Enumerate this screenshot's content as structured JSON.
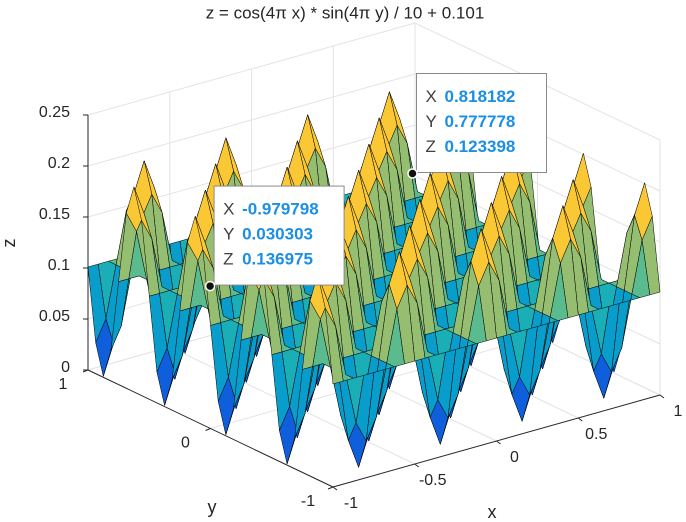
{
  "chart_data": {
    "type": "surface",
    "title": "z = cos(4π x) * sin(4π y) / 10 + 0.101",
    "xlabel": "x",
    "ylabel": "y",
    "zlabel": "z",
    "xlim": [
      -1,
      1
    ],
    "ylim": [
      -1,
      1
    ],
    "zlim": [
      0,
      0.25
    ],
    "xticks": [
      -1,
      -0.5,
      0,
      0.5,
      1
    ],
    "yticks": [
      -1,
      0,
      1
    ],
    "zticks": [
      0,
      0.05,
      0.1,
      0.15,
      0.2,
      0.25
    ],
    "grid": true,
    "clim": [
      0.001,
      0.201
    ],
    "colormap": [
      "#352a87",
      "#0f5cdd",
      "#1481d6",
      "#06a4ca",
      "#2eb7a4",
      "#87bf77",
      "#d1bb59",
      "#fec832",
      "#f9fb0e"
    ],
    "edge_color": "#000000",
    "x": [
      -1,
      -0.9375,
      -0.875,
      -0.8125,
      -0.75,
      -0.6875,
      -0.625,
      -0.5625,
      -0.5,
      -0.4375,
      -0.375,
      -0.3125,
      -0.25,
      -0.1875,
      -0.125,
      -0.0625,
      0,
      0.0625,
      0.125,
      0.1875,
      0.25,
      0.3125,
      0.375,
      0.4375,
      0.5,
      0.5625,
      0.625,
      0.6875,
      0.75,
      0.8125,
      0.875,
      0.9375,
      1
    ],
    "y": [
      -1,
      -0.9375,
      -0.875,
      -0.8125,
      -0.75,
      -0.6875,
      -0.625,
      -0.5625,
      -0.5,
      -0.4375,
      -0.375,
      -0.3125,
      -0.25,
      -0.1875,
      -0.125,
      -0.0625,
      0,
      0.0625,
      0.125,
      0.1875,
      0.25,
      0.3125,
      0.375,
      0.4375,
      0.5,
      0.5625,
      0.625,
      0.6875,
      0.75,
      0.8125,
      0.875,
      0.9375,
      1
    ],
    "z": [
      [
        0.101,
        0.101,
        0.101,
        0.101,
        0.101,
        0.101,
        0.101,
        0.101,
        0.101,
        0.101,
        0.101,
        0.101,
        0.101,
        0.101,
        0.101,
        0.101,
        0.101,
        0.101,
        0.101,
        0.101,
        0.101,
        0.101,
        0.101,
        0.101,
        0.101,
        0.101,
        0.101,
        0.101,
        0.101,
        0.101,
        0.101,
        0.101,
        0.101
      ],
      [
        0.1717,
        0.151,
        0.101,
        0.051,
        0.0303,
        0.051,
        0.101,
        0.151,
        0.1717,
        0.151,
        0.101,
        0.051,
        0.0303,
        0.051,
        0.101,
        0.151,
        0.1717,
        0.151,
        0.101,
        0.051,
        0.0303,
        0.051,
        0.101,
        0.151,
        0.1717,
        0.151,
        0.101,
        0.051,
        0.0303,
        0.051,
        0.101,
        0.151,
        0.1717
      ],
      [
        0.201,
        0.1717,
        0.101,
        0.0303,
        0.001,
        0.0303,
        0.101,
        0.1717,
        0.201,
        0.1717,
        0.101,
        0.0303,
        0.001,
        0.0303,
        0.101,
        0.1717,
        0.201,
        0.1717,
        0.101,
        0.0303,
        0.001,
        0.0303,
        0.101,
        0.1717,
        0.201,
        0.1717,
        0.101,
        0.0303,
        0.001,
        0.0303,
        0.101,
        0.1717,
        0.201
      ],
      [
        0.1717,
        0.151,
        0.101,
        0.051,
        0.0303,
        0.051,
        0.101,
        0.151,
        0.1717,
        0.151,
        0.101,
        0.051,
        0.0303,
        0.051,
        0.101,
        0.151,
        0.1717,
        0.151,
        0.101,
        0.051,
        0.0303,
        0.051,
        0.101,
        0.151,
        0.1717,
        0.151,
        0.101,
        0.051,
        0.0303,
        0.051,
        0.101,
        0.151,
        0.1717
      ],
      [
        0.101,
        0.101,
        0.101,
        0.101,
        0.101,
        0.101,
        0.101,
        0.101,
        0.101,
        0.101,
        0.101,
        0.101,
        0.101,
        0.101,
        0.101,
        0.101,
        0.101,
        0.101,
        0.101,
        0.101,
        0.101,
        0.101,
        0.101,
        0.101,
        0.101,
        0.101,
        0.101,
        0.101,
        0.101,
        0.101,
        0.101,
        0.101,
        0.101
      ],
      [
        0.0303,
        0.051,
        0.101,
        0.151,
        0.1717,
        0.151,
        0.101,
        0.051,
        0.0303,
        0.051,
        0.101,
        0.151,
        0.1717,
        0.151,
        0.101,
        0.051,
        0.0303,
        0.051,
        0.101,
        0.151,
        0.1717,
        0.151,
        0.101,
        0.051,
        0.0303,
        0.051,
        0.101,
        0.151,
        0.1717,
        0.151,
        0.101,
        0.051,
        0.0303
      ],
      [
        0.001,
        0.0303,
        0.101,
        0.1717,
        0.201,
        0.1717,
        0.101,
        0.0303,
        0.001,
        0.0303,
        0.101,
        0.1717,
        0.201,
        0.1717,
        0.101,
        0.0303,
        0.001,
        0.0303,
        0.101,
        0.1717,
        0.201,
        0.1717,
        0.101,
        0.0303,
        0.001,
        0.0303,
        0.101,
        0.1717,
        0.201,
        0.1717,
        0.101,
        0.0303,
        0.001
      ],
      [
        0.0303,
        0.051,
        0.101,
        0.151,
        0.1717,
        0.151,
        0.101,
        0.051,
        0.0303,
        0.051,
        0.101,
        0.151,
        0.1717,
        0.151,
        0.101,
        0.051,
        0.0303,
        0.051,
        0.101,
        0.151,
        0.1717,
        0.151,
        0.101,
        0.051,
        0.0303,
        0.051,
        0.101,
        0.151,
        0.1717,
        0.151,
        0.101,
        0.051,
        0.0303
      ],
      [
        0.101,
        0.101,
        0.101,
        0.101,
        0.101,
        0.101,
        0.101,
        0.101,
        0.101,
        0.101,
        0.101,
        0.101,
        0.101,
        0.101,
        0.101,
        0.101,
        0.101,
        0.101,
        0.101,
        0.101,
        0.101,
        0.101,
        0.101,
        0.101,
        0.101,
        0.101,
        0.101,
        0.101,
        0.101,
        0.101,
        0.101,
        0.101,
        0.101
      ],
      [
        0.1717,
        0.151,
        0.101,
        0.051,
        0.0303,
        0.051,
        0.101,
        0.151,
        0.1717,
        0.151,
        0.101,
        0.051,
        0.0303,
        0.051,
        0.101,
        0.151,
        0.1717,
        0.151,
        0.101,
        0.051,
        0.0303,
        0.051,
        0.101,
        0.151,
        0.1717,
        0.151,
        0.101,
        0.051,
        0.0303,
        0.051,
        0.101,
        0.151,
        0.1717
      ],
      [
        0.201,
        0.1717,
        0.101,
        0.0303,
        0.001,
        0.0303,
        0.101,
        0.1717,
        0.201,
        0.1717,
        0.101,
        0.0303,
        0.001,
        0.0303,
        0.101,
        0.1717,
        0.201,
        0.1717,
        0.101,
        0.0303,
        0.001,
        0.0303,
        0.101,
        0.1717,
        0.201,
        0.1717,
        0.101,
        0.0303,
        0.001,
        0.0303,
        0.101,
        0.1717,
        0.201
      ],
      [
        0.1717,
        0.151,
        0.101,
        0.051,
        0.0303,
        0.051,
        0.101,
        0.151,
        0.1717,
        0.151,
        0.101,
        0.051,
        0.0303,
        0.051,
        0.101,
        0.151,
        0.1717,
        0.151,
        0.101,
        0.051,
        0.0303,
        0.051,
        0.101,
        0.151,
        0.1717,
        0.151,
        0.101,
        0.051,
        0.0303,
        0.051,
        0.101,
        0.151,
        0.1717
      ],
      [
        0.101,
        0.101,
        0.101,
        0.101,
        0.101,
        0.101,
        0.101,
        0.101,
        0.101,
        0.101,
        0.101,
        0.101,
        0.101,
        0.101,
        0.101,
        0.101,
        0.101,
        0.101,
        0.101,
        0.101,
        0.101,
        0.101,
        0.101,
        0.101,
        0.101,
        0.101,
        0.101,
        0.101,
        0.101,
        0.101,
        0.101,
        0.101,
        0.101
      ],
      [
        0.0303,
        0.051,
        0.101,
        0.151,
        0.1717,
        0.151,
        0.101,
        0.051,
        0.0303,
        0.051,
        0.101,
        0.151,
        0.1717,
        0.151,
        0.101,
        0.051,
        0.0303,
        0.051,
        0.101,
        0.151,
        0.1717,
        0.151,
        0.101,
        0.051,
        0.0303,
        0.051,
        0.101,
        0.151,
        0.1717,
        0.151,
        0.101,
        0.051,
        0.0303
      ],
      [
        0.001,
        0.0303,
        0.101,
        0.1717,
        0.201,
        0.1717,
        0.101,
        0.0303,
        0.001,
        0.0303,
        0.101,
        0.1717,
        0.201,
        0.1717,
        0.101,
        0.0303,
        0.001,
        0.0303,
        0.101,
        0.1717,
        0.201,
        0.1717,
        0.101,
        0.0303,
        0.001,
        0.0303,
        0.101,
        0.1717,
        0.201,
        0.1717,
        0.101,
        0.0303,
        0.001
      ],
      [
        0.0303,
        0.051,
        0.101,
        0.151,
        0.1717,
        0.151,
        0.101,
        0.051,
        0.0303,
        0.051,
        0.101,
        0.151,
        0.1717,
        0.151,
        0.101,
        0.051,
        0.0303,
        0.051,
        0.101,
        0.151,
        0.1717,
        0.151,
        0.101,
        0.051,
        0.0303,
        0.051,
        0.101,
        0.151,
        0.1717,
        0.151,
        0.101,
        0.051,
        0.0303
      ],
      [
        0.101,
        0.101,
        0.101,
        0.101,
        0.101,
        0.101,
        0.101,
        0.101,
        0.101,
        0.101,
        0.101,
        0.101,
        0.101,
        0.101,
        0.101,
        0.101,
        0.101,
        0.101,
        0.101,
        0.101,
        0.101,
        0.101,
        0.101,
        0.101,
        0.101,
        0.101,
        0.101,
        0.101,
        0.101,
        0.101,
        0.101,
        0.101,
        0.101
      ],
      [
        0.1717,
        0.151,
        0.101,
        0.051,
        0.0303,
        0.051,
        0.101,
        0.151,
        0.1717,
        0.151,
        0.101,
        0.051,
        0.0303,
        0.051,
        0.101,
        0.151,
        0.1717,
        0.151,
        0.101,
        0.051,
        0.0303,
        0.051,
        0.101,
        0.151,
        0.1717,
        0.151,
        0.101,
        0.051,
        0.0303,
        0.051,
        0.101,
        0.151,
        0.1717
      ],
      [
        0.201,
        0.1717,
        0.101,
        0.0303,
        0.001,
        0.0303,
        0.101,
        0.1717,
        0.201,
        0.1717,
        0.101,
        0.0303,
        0.001,
        0.0303,
        0.101,
        0.1717,
        0.201,
        0.1717,
        0.101,
        0.0303,
        0.001,
        0.0303,
        0.101,
        0.1717,
        0.201,
        0.1717,
        0.101,
        0.0303,
        0.001,
        0.0303,
        0.101,
        0.1717,
        0.201
      ],
      [
        0.1717,
        0.151,
        0.101,
        0.051,
        0.0303,
        0.051,
        0.101,
        0.151,
        0.1717,
        0.151,
        0.101,
        0.051,
        0.0303,
        0.051,
        0.101,
        0.151,
        0.1717,
        0.151,
        0.101,
        0.051,
        0.0303,
        0.051,
        0.101,
        0.151,
        0.1717,
        0.151,
        0.101,
        0.051,
        0.0303,
        0.051,
        0.101,
        0.151,
        0.1717
      ],
      [
        0.101,
        0.101,
        0.101,
        0.101,
        0.101,
        0.101,
        0.101,
        0.101,
        0.101,
        0.101,
        0.101,
        0.101,
        0.101,
        0.101,
        0.101,
        0.101,
        0.101,
        0.101,
        0.101,
        0.101,
        0.101,
        0.101,
        0.101,
        0.101,
        0.101,
        0.101,
        0.101,
        0.101,
        0.101,
        0.101,
        0.101,
        0.101,
        0.101
      ],
      [
        0.0303,
        0.051,
        0.101,
        0.151,
        0.1717,
        0.151,
        0.101,
        0.051,
        0.0303,
        0.051,
        0.101,
        0.151,
        0.1717,
        0.151,
        0.101,
        0.051,
        0.0303,
        0.051,
        0.101,
        0.151,
        0.1717,
        0.151,
        0.101,
        0.051,
        0.0303,
        0.051,
        0.101,
        0.151,
        0.1717,
        0.151,
        0.101,
        0.051,
        0.0303
      ],
      [
        0.001,
        0.0303,
        0.101,
        0.1717,
        0.201,
        0.1717,
        0.101,
        0.0303,
        0.001,
        0.0303,
        0.101,
        0.1717,
        0.201,
        0.1717,
        0.101,
        0.0303,
        0.001,
        0.0303,
        0.101,
        0.1717,
        0.201,
        0.1717,
        0.101,
        0.0303,
        0.001,
        0.0303,
        0.101,
        0.1717,
        0.201,
        0.1717,
        0.101,
        0.0303,
        0.001
      ],
      [
        0.0303,
        0.051,
        0.101,
        0.151,
        0.1717,
        0.151,
        0.101,
        0.051,
        0.0303,
        0.051,
        0.101,
        0.151,
        0.1717,
        0.151,
        0.101,
        0.051,
        0.0303,
        0.051,
        0.101,
        0.151,
        0.1717,
        0.151,
        0.101,
        0.051,
        0.0303,
        0.051,
        0.101,
        0.151,
        0.1717,
        0.151,
        0.101,
        0.051,
        0.0303
      ],
      [
        0.101,
        0.101,
        0.101,
        0.101,
        0.101,
        0.101,
        0.101,
        0.101,
        0.101,
        0.101,
        0.101,
        0.101,
        0.101,
        0.101,
        0.101,
        0.101,
        0.101,
        0.101,
        0.101,
        0.101,
        0.101,
        0.101,
        0.101,
        0.101,
        0.101,
        0.101,
        0.101,
        0.101,
        0.101,
        0.101,
        0.101,
        0.101,
        0.101
      ],
      [
        0.1717,
        0.151,
        0.101,
        0.051,
        0.0303,
        0.051,
        0.101,
        0.151,
        0.1717,
        0.151,
        0.101,
        0.051,
        0.0303,
        0.051,
        0.101,
        0.151,
        0.1717,
        0.151,
        0.101,
        0.051,
        0.0303,
        0.051,
        0.101,
        0.151,
        0.1717,
        0.151,
        0.101,
        0.051,
        0.0303,
        0.051,
        0.101,
        0.151,
        0.1717
      ],
      [
        0.201,
        0.1717,
        0.101,
        0.0303,
        0.001,
        0.0303,
        0.101,
        0.1717,
        0.201,
        0.1717,
        0.101,
        0.0303,
        0.001,
        0.0303,
        0.101,
        0.1717,
        0.201,
        0.1717,
        0.101,
        0.0303,
        0.001,
        0.0303,
        0.101,
        0.1717,
        0.201,
        0.1717,
        0.101,
        0.0303,
        0.001,
        0.0303,
        0.101,
        0.1717,
        0.201
      ],
      [
        0.1717,
        0.151,
        0.101,
        0.051,
        0.0303,
        0.051,
        0.101,
        0.151,
        0.1717,
        0.151,
        0.101,
        0.051,
        0.0303,
        0.051,
        0.101,
        0.151,
        0.1717,
        0.151,
        0.101,
        0.051,
        0.0303,
        0.051,
        0.101,
        0.151,
        0.1717,
        0.151,
        0.101,
        0.051,
        0.0303,
        0.051,
        0.101,
        0.151,
        0.1717
      ],
      [
        0.101,
        0.101,
        0.101,
        0.101,
        0.101,
        0.101,
        0.101,
        0.101,
        0.101,
        0.101,
        0.101,
        0.101,
        0.101,
        0.101,
        0.101,
        0.101,
        0.101,
        0.101,
        0.101,
        0.101,
        0.101,
        0.101,
        0.101,
        0.101,
        0.101,
        0.101,
        0.101,
        0.101,
        0.101,
        0.101,
        0.101,
        0.101,
        0.101
      ],
      [
        0.0303,
        0.051,
        0.101,
        0.151,
        0.1717,
        0.151,
        0.101,
        0.051,
        0.0303,
        0.051,
        0.101,
        0.151,
        0.1717,
        0.151,
        0.101,
        0.051,
        0.0303,
        0.051,
        0.101,
        0.151,
        0.1717,
        0.151,
        0.101,
        0.051,
        0.0303,
        0.051,
        0.101,
        0.151,
        0.1717,
        0.151,
        0.101,
        0.051,
        0.0303
      ],
      [
        0.001,
        0.0303,
        0.101,
        0.1717,
        0.201,
        0.1717,
        0.101,
        0.0303,
        0.001,
        0.0303,
        0.101,
        0.1717,
        0.201,
        0.1717,
        0.101,
        0.0303,
        0.001,
        0.0303,
        0.101,
        0.1717,
        0.201,
        0.1717,
        0.101,
        0.0303,
        0.001,
        0.0303,
        0.101,
        0.1717,
        0.201,
        0.1717,
        0.101,
        0.0303,
        0.001
      ],
      [
        0.0303,
        0.051,
        0.101,
        0.151,
        0.1717,
        0.151,
        0.101,
        0.051,
        0.0303,
        0.051,
        0.101,
        0.151,
        0.1717,
        0.151,
        0.101,
        0.051,
        0.0303,
        0.051,
        0.101,
        0.151,
        0.1717,
        0.151,
        0.101,
        0.051,
        0.0303,
        0.051,
        0.101,
        0.151,
        0.1717,
        0.151,
        0.101,
        0.051,
        0.0303
      ],
      [
        0.101,
        0.101,
        0.101,
        0.101,
        0.101,
        0.101,
        0.101,
        0.101,
        0.101,
        0.101,
        0.101,
        0.101,
        0.101,
        0.101,
        0.101,
        0.101,
        0.101,
        0.101,
        0.101,
        0.101,
        0.101,
        0.101,
        0.101,
        0.101,
        0.101,
        0.101,
        0.101,
        0.101,
        0.101,
        0.101,
        0.101,
        0.101,
        0.101
      ]
    ],
    "datatip_labels": [
      "X",
      "Y",
      "Z"
    ],
    "datatips": [
      {
        "x": -0.979798,
        "y": 0.030303,
        "z": 0.136975
      },
      {
        "x": 0.818182,
        "y": 0.777778,
        "z": 0.123398
      }
    ]
  }
}
